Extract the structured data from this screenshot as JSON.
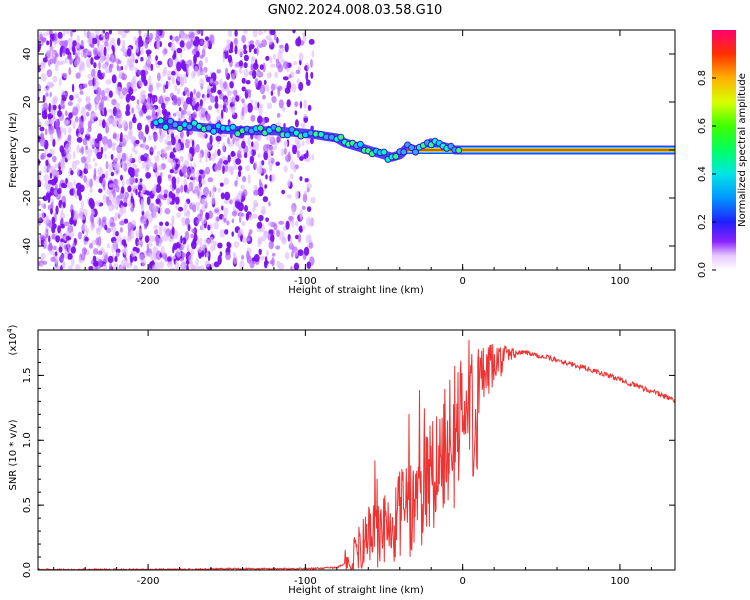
{
  "title": "GN02.2024.008.03.58.G10",
  "colorbar": {
    "label": "Normalized spectral amplitude",
    "ticks": [
      "0.0",
      "0.2",
      "0.4",
      "0.6",
      "0.8"
    ]
  },
  "chart_data": [
    {
      "type": "heatmap",
      "xlabel": "Height of straight line (km)",
      "ylabel": "Frequency (Hz)",
      "xlim": [
        -270,
        135
      ],
      "ylim": [
        -50,
        50
      ],
      "xticks": [
        -200,
        -100,
        0,
        100
      ],
      "yticks": [
        -40,
        -20,
        0,
        20,
        40
      ],
      "xtick_labels": [
        "-200",
        "-100",
        "0",
        "100"
      ],
      "ytick_labels": [
        "-40",
        "-20",
        "0",
        "20",
        "40"
      ],
      "ridge": {
        "x": [
          -195,
          -140,
          -120,
          -100,
          -90,
          -80,
          -75,
          -70,
          -65,
          -60,
          -55,
          -50,
          -45,
          -40,
          -35,
          -30,
          -25,
          -20,
          -15,
          -10,
          -5,
          0,
          50,
          100,
          135
        ],
        "y": [
          11,
          8,
          8,
          7,
          6,
          5,
          3,
          2,
          1,
          0,
          -1,
          -2,
          -3,
          -2,
          1,
          0,
          1,
          3,
          2,
          1,
          0,
          0,
          0,
          0,
          0
        ]
      }
    },
    {
      "type": "line",
      "xlabel": "Height of straight line (km)",
      "ylabel": "SNR (10 * v/v)",
      "y_multiplier": "(x10",
      "y_multiplier_exp": "4",
      "y_multiplier_close": ")",
      "xlim": [
        -270,
        135
      ],
      "ylim": [
        0,
        1.85
      ],
      "xticks": [
        -200,
        -100,
        0,
        100
      ],
      "yticks": [
        0.0,
        0.5,
        1.0,
        1.5
      ],
      "xtick_labels": [
        "-200",
        "-100",
        "0",
        "100"
      ],
      "ytick_labels": [
        "0.0",
        "0.5",
        "1.0",
        "1.5"
      ],
      "color": "#ee3333",
      "series": [
        {
          "x": [
            -270,
            -200,
            -150,
            -100,
            -80,
            -70,
            -65,
            -60,
            -55,
            -50,
            -45,
            -40,
            -35,
            -30,
            -25,
            -20,
            -15,
            -10,
            -5,
            0,
            10,
            20,
            30,
            40,
            60,
            80,
            100,
            120,
            135
          ],
          "values": [
            0.0,
            0.0,
            0.01,
            0.01,
            0.02,
            0.08,
            0.2,
            0.3,
            0.28,
            0.35,
            0.3,
            0.45,
            0.5,
            0.55,
            0.7,
            0.8,
            0.85,
            1.0,
            1.1,
            1.2,
            1.45,
            1.6,
            1.67,
            1.68,
            1.62,
            1.55,
            1.47,
            1.38,
            1.31
          ]
        }
      ]
    }
  ]
}
